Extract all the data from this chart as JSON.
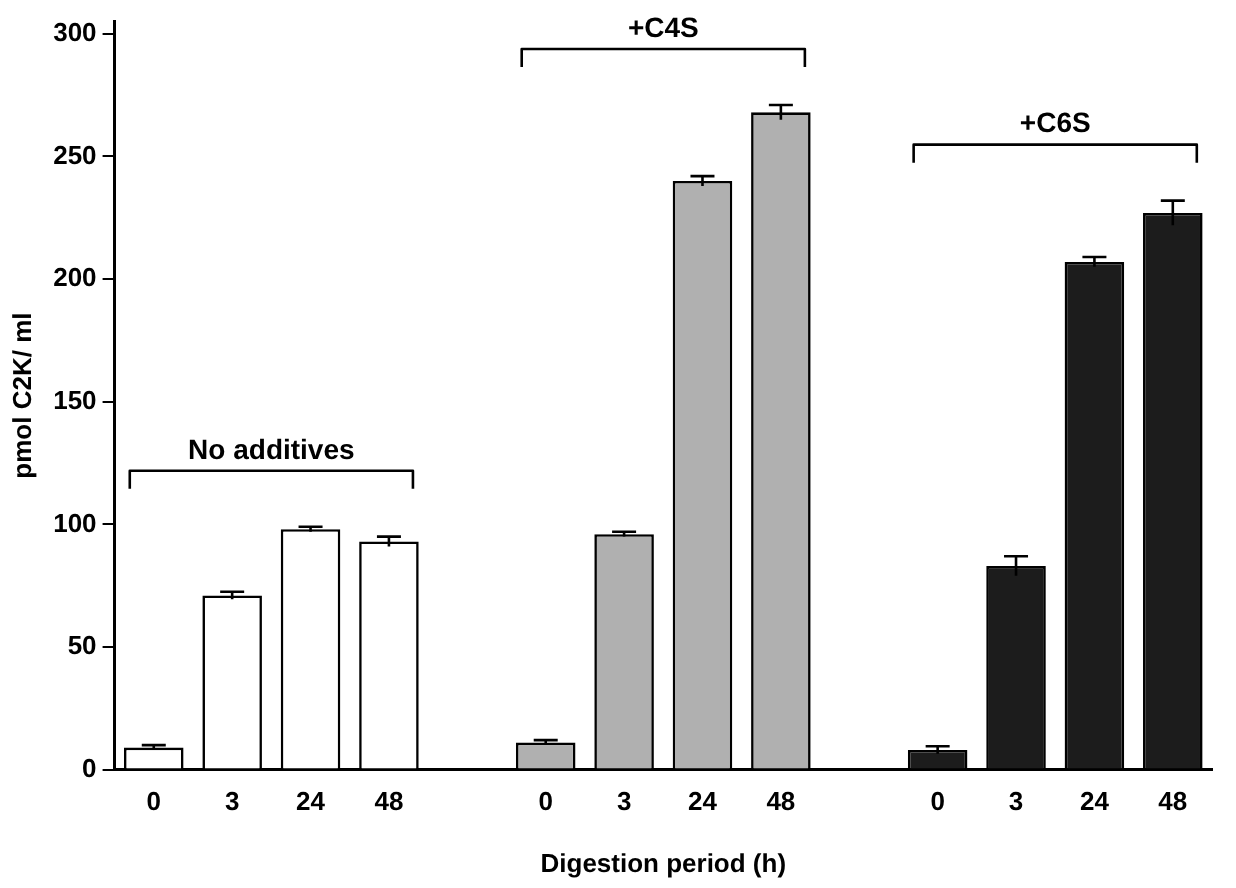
{
  "chart_data": {
    "type": "bar",
    "xlabel": "Digestion period (h)",
    "ylabel": "pmol C2K/ ml",
    "categories": [
      "0",
      "3",
      "24",
      "48",
      null,
      "0",
      "3",
      "24",
      "48",
      null,
      "0",
      "3",
      "24",
      "48"
    ],
    "values": [
      9,
      71,
      98,
      93,
      null,
      11,
      96,
      240,
      268,
      null,
      8,
      83,
      207,
      227
    ],
    "errors": [
      1,
      1.5,
      1,
      2,
      null,
      1,
      1,
      2,
      3,
      null,
      1.5,
      4,
      2,
      5
    ],
    "colors": [
      "#ffffff",
      "#ffffff",
      "#ffffff",
      "#ffffff",
      null,
      "#b0b0b0",
      "#b0b0b0",
      "#b0b0b0",
      "#b0b0b0",
      null,
      "#1c1c1c",
      "#1c1c1c",
      "#1c1c1c",
      "#1c1c1c"
    ],
    "annotations": [
      "No additives",
      "+C4S",
      "+C6S"
    ],
    "ylim": [
      0,
      305
    ],
    "yticks": [
      0,
      50,
      100,
      150,
      200,
      250,
      300
    ],
    "grid": false,
    "legend": false
  }
}
